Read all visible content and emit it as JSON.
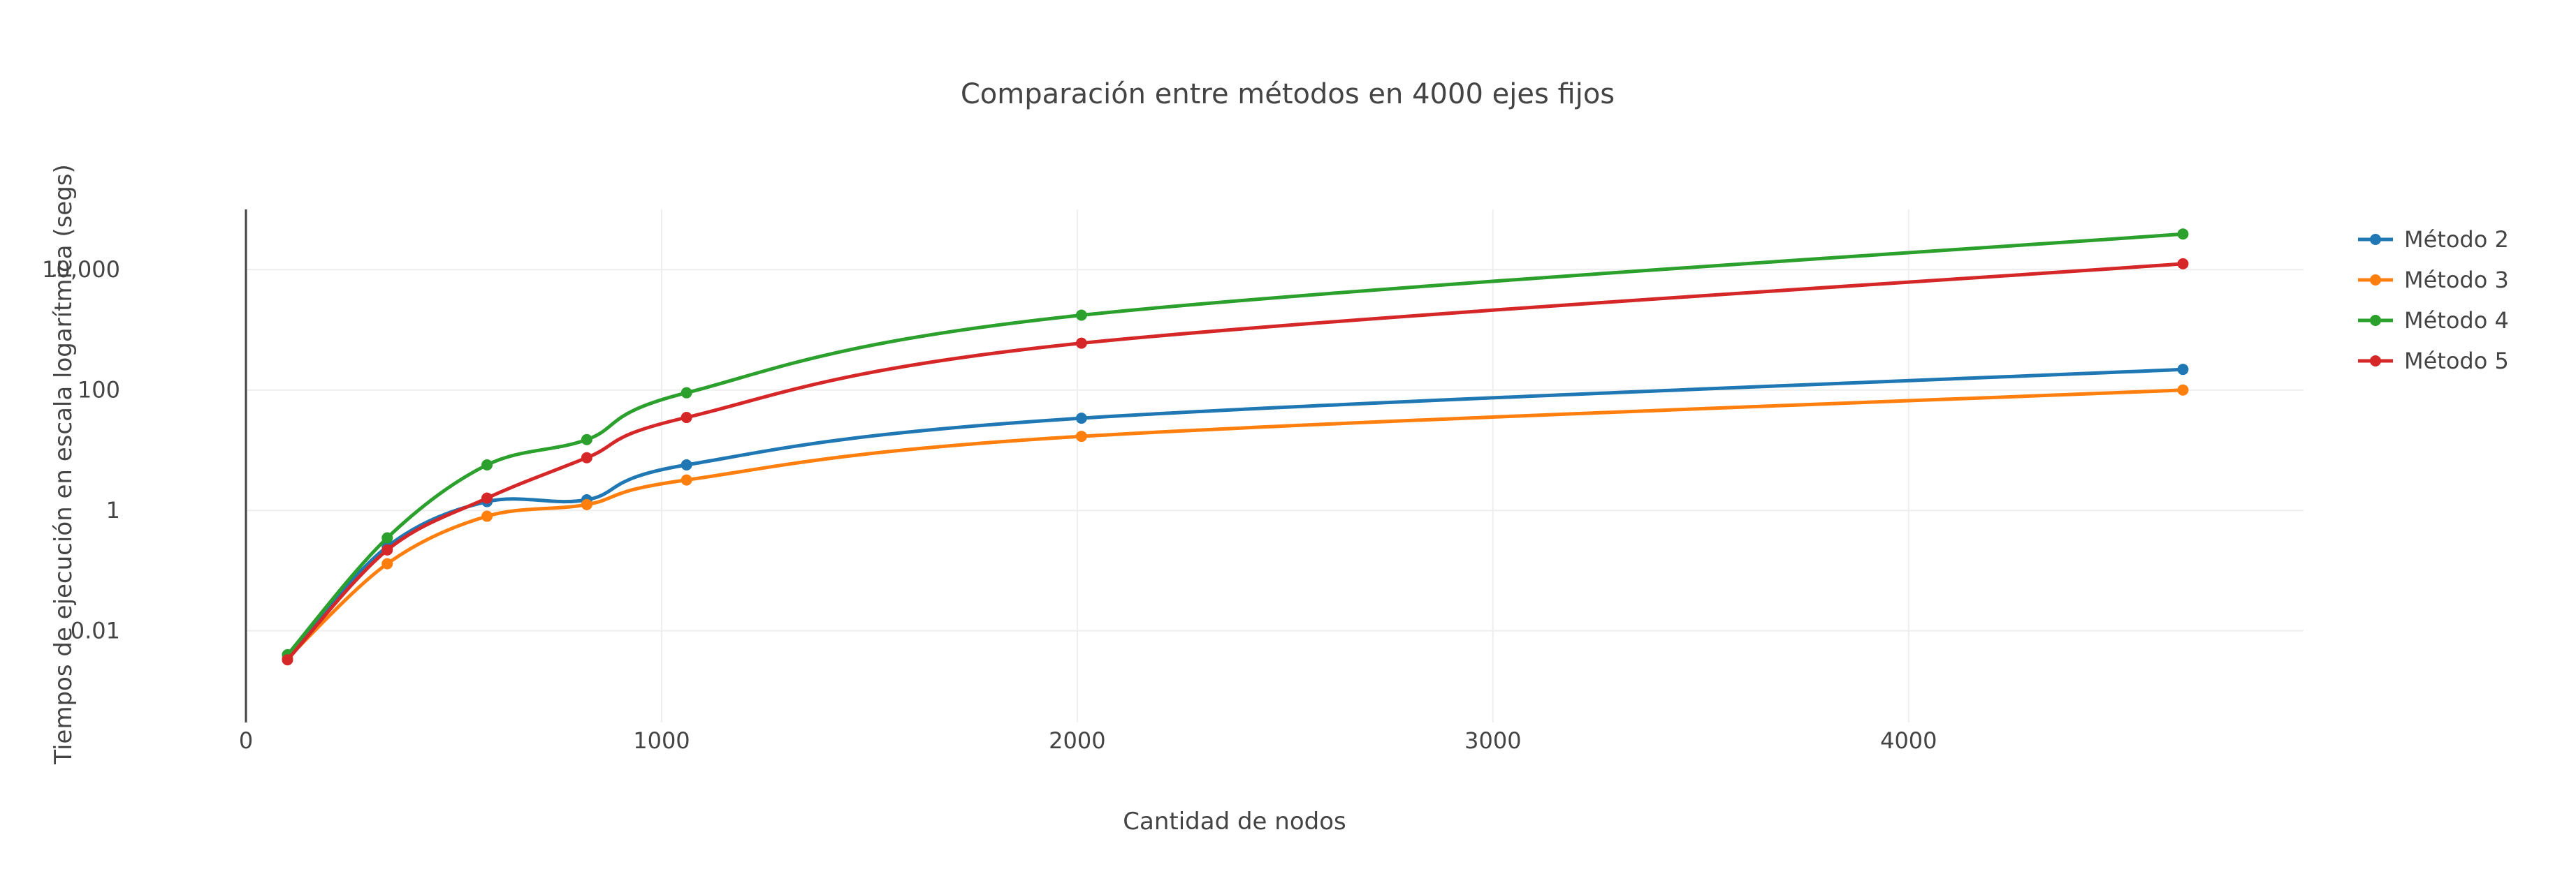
{
  "chart_data": {
    "type": "line",
    "title": "Comparación entre métodos en 4000 ejes fijos",
    "xlabel": "Cantidad de nodos",
    "ylabel": "Tiempos de ejecución en escala logarítmica (segs)",
    "xlim": [
      0,
      4950
    ],
    "ylim": [
      0.0003,
      100000
    ],
    "y_scale": "log",
    "x_ticks": [
      0,
      1000,
      2000,
      3000,
      4000
    ],
    "x_tick_labels": [
      "0",
      "1000",
      "2000",
      "3000",
      "4000"
    ],
    "y_ticks": [
      0.01,
      1,
      100,
      10000
    ],
    "y_tick_labels": [
      "0.01",
      "1",
      "100",
      "10,000"
    ],
    "grid": true,
    "legend_position": "top-right",
    "x": [
      100,
      340,
      580,
      820,
      1060,
      2010,
      4660
    ],
    "series": [
      {
        "name": "Método 2",
        "color": "#1f77b4",
        "values": [
          0.004,
          0.25,
          1.4,
          1.5,
          5.7,
          34,
          220
        ]
      },
      {
        "name": "Método 3",
        "color": "#ff7f0e",
        "values": [
          0.0035,
          0.13,
          0.8,
          1.25,
          3.2,
          17,
          100
        ]
      },
      {
        "name": "Método 4",
        "color": "#2ca02c",
        "values": [
          0.004,
          0.35,
          5.7,
          15,
          90,
          1750,
          39000
        ]
      },
      {
        "name": "Método 5",
        "color": "#d62728",
        "values": [
          0.0033,
          0.22,
          1.6,
          7.5,
          35,
          600,
          12500
        ]
      }
    ]
  }
}
